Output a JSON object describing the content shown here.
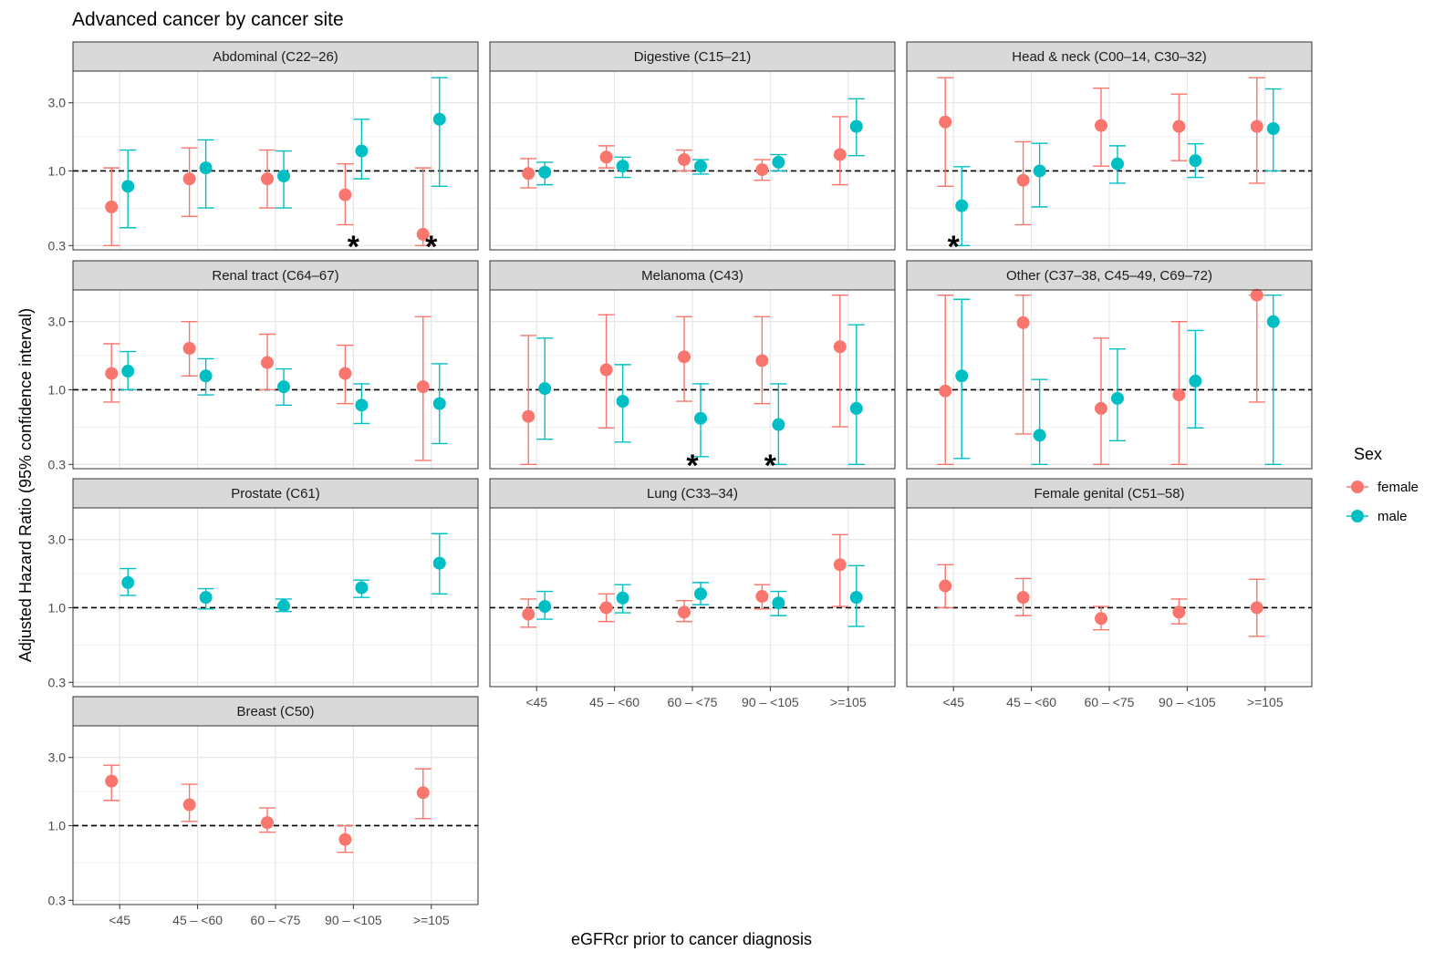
{
  "chart_data": {
    "type": "scatter",
    "subtype": "faceted point-range plot (hazard ratios with 95% CI, log y scale)",
    "title": "Advanced cancer by cancer site",
    "xlabel": "eGFRcr prior to cancer diagnosis",
    "ylabel": "Adjusted Hazard Ratio (95% confidence interval)",
    "categories": [
      "<45",
      "45 – <60",
      "60 – <75",
      "90 – <105",
      ">=105"
    ],
    "y_scale": "log",
    "y_ticks": [
      0.3,
      1.0,
      3.0
    ],
    "y_tick_labels": [
      "0.3",
      "1.0",
      "3.0"
    ],
    "ylim": [
      0.28,
      5.0
    ],
    "reference_line": 1.0,
    "grid": true,
    "legend": {
      "title": "Sex",
      "position": "right",
      "items": [
        {
          "label": "female",
          "color": "#F8766D"
        },
        {
          "label": "male",
          "color": "#00BFC4"
        }
      ]
    },
    "panels": [
      {
        "title": "Abdominal (C22–26)",
        "series": [
          {
            "name": "female",
            "values": [
              0.56,
              0.88,
              0.88,
              0.68,
              0.36
            ],
            "lower": [
              0.3,
              0.48,
              0.55,
              0.42,
              0.3
            ],
            "upper": [
              1.05,
              1.45,
              1.4,
              1.12,
              1.05
            ]
          },
          {
            "name": "male",
            "values": [
              0.78,
              1.05,
              0.92,
              1.38,
              2.3
            ],
            "lower": [
              0.4,
              0.55,
              0.55,
              0.88,
              0.78
            ],
            "upper": [
              1.4,
              1.65,
              1.38,
              2.3,
              4.5
            ]
          }
        ],
        "significance": [
          {
            "category": "90 – <105",
            "label": "*"
          },
          {
            "category": ">=105",
            "label": "*"
          }
        ]
      },
      {
        "title": "Digestive (C15–21)",
        "series": [
          {
            "name": "female",
            "values": [
              0.96,
              1.25,
              1.2,
              1.02,
              1.3
            ],
            "lower": [
              0.76,
              1.05,
              1.0,
              0.86,
              0.8
            ],
            "upper": [
              1.22,
              1.5,
              1.4,
              1.2,
              2.4
            ]
          },
          {
            "name": "male",
            "values": [
              0.98,
              1.08,
              1.08,
              1.15,
              2.05
            ],
            "lower": [
              0.8,
              0.9,
              0.95,
              1.0,
              1.28
            ],
            "upper": [
              1.15,
              1.25,
              1.2,
              1.3,
              3.2
            ]
          }
        ],
        "significance": []
      },
      {
        "title": "Head & neck (C00–14, C30–32)",
        "series": [
          {
            "name": "female",
            "values": [
              2.2,
              0.86,
              2.08,
              2.05,
              2.05
            ],
            "lower": [
              0.78,
              0.42,
              1.08,
              1.18,
              0.82
            ],
            "upper": [
              4.5,
              1.6,
              3.8,
              3.45,
              4.5
            ]
          },
          {
            "name": "male",
            "values": [
              0.57,
              1.0,
              1.12,
              1.18,
              1.98
            ],
            "lower": [
              0.3,
              0.56,
              0.82,
              0.9,
              1.0
            ],
            "upper": [
              1.07,
              1.56,
              1.5,
              1.55,
              3.75
            ]
          }
        ],
        "significance": [
          {
            "category": "<45",
            "label": "*"
          }
        ]
      },
      {
        "title": "Renal tract (C64–67)",
        "series": [
          {
            "name": "female",
            "values": [
              1.3,
              1.95,
              1.55,
              1.3,
              1.05
            ],
            "lower": [
              0.82,
              1.25,
              1.0,
              0.8,
              0.32
            ],
            "upper": [
              2.1,
              3.0,
              2.45,
              2.05,
              3.25
            ]
          },
          {
            "name": "male",
            "values": [
              1.35,
              1.25,
              1.05,
              0.78,
              0.8
            ],
            "lower": [
              1.0,
              0.92,
              0.78,
              0.58,
              0.42
            ],
            "upper": [
              1.85,
              1.65,
              1.4,
              1.1,
              1.52
            ]
          }
        ],
        "significance": []
      },
      {
        "title": "Melanoma (C43)",
        "series": [
          {
            "name": "female",
            "values": [
              0.65,
              1.38,
              1.7,
              1.6,
              2.0
            ],
            "lower": [
              0.3,
              0.54,
              0.83,
              0.8,
              0.55
            ],
            "upper": [
              2.4,
              3.35,
              3.25,
              3.25,
              4.6
            ]
          },
          {
            "name": "male",
            "values": [
              1.02,
              0.83,
              0.63,
              0.57,
              0.74
            ],
            "lower": [
              0.45,
              0.43,
              0.34,
              0.3,
              0.3
            ],
            "upper": [
              2.3,
              1.5,
              1.1,
              1.1,
              2.85
            ]
          }
        ],
        "significance": [
          {
            "category": "60 – <75",
            "label": "*"
          },
          {
            "category": "90 – <105",
            "label": "*"
          }
        ]
      },
      {
        "title": "Other (C37–38, C45–49, C69–72)",
        "series": [
          {
            "name": "female",
            "values": [
              0.98,
              2.95,
              0.74,
              0.92,
              4.6
            ],
            "lower": [
              0.3,
              0.49,
              0.3,
              0.3,
              0.82
            ],
            "upper": [
              4.6,
              4.6,
              2.3,
              3.0,
              4.6
            ]
          },
          {
            "name": "male",
            "values": [
              1.25,
              0.48,
              0.87,
              1.15,
              3.0
            ],
            "lower": [
              0.33,
              0.3,
              0.44,
              0.54,
              0.3
            ],
            "upper": [
              4.3,
              1.18,
              1.93,
              2.6,
              4.6
            ]
          }
        ],
        "significance": []
      },
      {
        "title": "Prostate (C61)",
        "series": [
          {
            "name": "male",
            "values": [
              1.5,
              1.18,
              1.03,
              1.38,
              2.05
            ],
            "lower": [
              1.22,
              0.98,
              0.94,
              1.18,
              1.25
            ],
            "upper": [
              1.88,
              1.36,
              1.15,
              1.56,
              3.3
            ]
          }
        ],
        "significance": []
      },
      {
        "title": "Lung (C33–34)",
        "series": [
          {
            "name": "female",
            "values": [
              0.9,
              1.0,
              0.93,
              1.2,
              2.0
            ],
            "lower": [
              0.73,
              0.8,
              0.8,
              0.98,
              1.02
            ],
            "upper": [
              1.15,
              1.25,
              1.12,
              1.45,
              3.25
            ]
          },
          {
            "name": "male",
            "values": [
              1.02,
              1.17,
              1.25,
              1.08,
              1.18
            ],
            "lower": [
              0.83,
              0.92,
              1.05,
              0.88,
              0.74
            ],
            "upper": [
              1.3,
              1.45,
              1.5,
              1.3,
              1.97
            ]
          }
        ],
        "significance": []
      },
      {
        "title": "Female genital (C51–58)",
        "series": [
          {
            "name": "female",
            "values": [
              1.42,
              1.18,
              0.84,
              0.93,
              1.0
            ],
            "lower": [
              1.0,
              0.88,
              0.7,
              0.77,
              0.63
            ],
            "upper": [
              2.0,
              1.6,
              1.02,
              1.15,
              1.58
            ]
          }
        ],
        "significance": []
      },
      {
        "title": "Breast (C50)",
        "series": [
          {
            "name": "female",
            "values": [
              2.05,
              1.4,
              1.05,
              0.8,
              1.7
            ],
            "lower": [
              1.5,
              1.07,
              0.9,
              0.65,
              1.12
            ],
            "upper": [
              2.65,
              1.95,
              1.33,
              1.0,
              2.5
            ]
          }
        ],
        "significance": []
      }
    ]
  }
}
